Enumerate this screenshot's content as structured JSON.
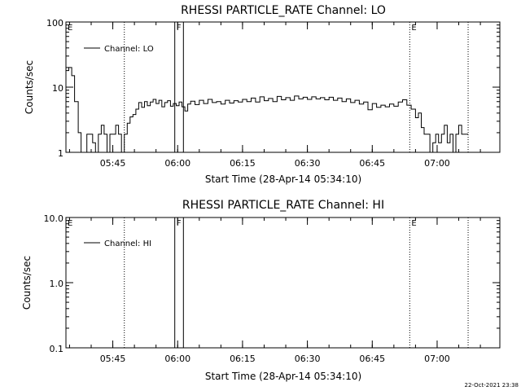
{
  "footer": {
    "timestamp": "22-Oct-2021 23:38"
  },
  "chart_data": [
    {
      "type": "line",
      "title": "RHESSI PARTICLE_RATE Channel: LO",
      "xlabel": "Start Time (28-Apr-14 05:34:10)",
      "ylabel": "Counts/sec",
      "yscale": "log",
      "ylim": [
        1,
        100
      ],
      "yticks": [
        {
          "value": 1,
          "label": "1"
        },
        {
          "value": 10,
          "label": "10"
        },
        {
          "value": 100,
          "label": "100"
        }
      ],
      "xlim": [
        "05:34:10",
        "07:14:30"
      ],
      "xticks": [
        {
          "time": "05:45",
          "label": "05:45"
        },
        {
          "time": "06:00",
          "label": "06:00"
        },
        {
          "time": "06:15",
          "label": "06:15"
        },
        {
          "time": "06:30",
          "label": "06:30"
        },
        {
          "time": "06:45",
          "label": "06:45"
        },
        {
          "time": "07:00",
          "label": "07:00"
        }
      ],
      "legend": {
        "label": "Channel: LO",
        "position": "top-left"
      },
      "markers": [
        {
          "time": "05:34:10",
          "style": "none",
          "label": "E"
        },
        {
          "time": "05:47:40",
          "style": "dotted",
          "label": ""
        },
        {
          "time": "05:59:20",
          "style": "solid",
          "label": "F"
        },
        {
          "time": "06:01:20",
          "style": "solid",
          "label": ""
        },
        {
          "time": "06:53:40",
          "style": "dotted",
          "label": "E"
        },
        {
          "time": "07:07:10",
          "style": "dotted",
          "label": ""
        }
      ],
      "series": [
        {
          "name": "",
          "points": [
            [
              "05:34:10",
              18
            ],
            [
              "05:34:50",
              20
            ],
            [
              "05:35:30",
              15
            ],
            [
              "05:36:10",
              6
            ],
            [
              "05:37:00",
              2
            ],
            [
              "05:37:40",
              1
            ],
            [
              "05:38:20",
              1
            ],
            [
              "05:39:00",
              1.9
            ],
            [
              "05:39:40",
              1.9
            ],
            [
              "05:40:20",
              1.4
            ],
            [
              "05:41:00",
              1
            ],
            [
              "05:41:40",
              1.9
            ],
            [
              "05:42:20",
              2.6
            ],
            [
              "05:43:00",
              1.9
            ],
            [
              "05:43:40",
              1
            ],
            [
              "05:44:20",
              1.9
            ],
            [
              "05:45:00",
              1.9
            ],
            [
              "05:45:40",
              2.6
            ],
            [
              "05:46:20",
              1.9
            ],
            [
              "05:47:00",
              1
            ],
            [
              "05:47:40",
              1.9
            ],
            [
              "05:48:20",
              2.8
            ],
            [
              "05:49:00",
              3.5
            ],
            [
              "05:49:40",
              3.8
            ],
            [
              "05:50:20",
              4.6
            ],
            [
              "05:51:00",
              5.8
            ],
            [
              "05:51:40",
              4.9
            ],
            [
              "05:52:20",
              6.0
            ],
            [
              "05:53:00",
              5.2
            ],
            [
              "05:53:40",
              5.9
            ],
            [
              "05:54:20",
              6.5
            ],
            [
              "05:55:00",
              5.6
            ],
            [
              "05:55:40",
              6.3
            ],
            [
              "05:56:20",
              5.0
            ],
            [
              "05:57:00",
              5.8
            ],
            [
              "05:57:40",
              6.2
            ],
            [
              "05:58:20",
              5.1
            ],
            [
              "05:59:00",
              5.6
            ],
            [
              "05:59:40",
              5.2
            ],
            [
              "06:00:20",
              5.9
            ],
            [
              "06:01:00",
              5.0
            ],
            [
              "06:01:40",
              4.3
            ],
            [
              "06:02:20",
              5.5
            ],
            [
              "06:03:00",
              6.1
            ],
            [
              "06:04:00",
              5.4
            ],
            [
              "06:05:00",
              6.3
            ],
            [
              "06:06:00",
              5.6
            ],
            [
              "06:07:00",
              6.5
            ],
            [
              "06:08:00",
              5.8
            ],
            [
              "06:09:00",
              6.0
            ],
            [
              "06:10:00",
              5.5
            ],
            [
              "06:11:00",
              6.3
            ],
            [
              "06:12:00",
              5.7
            ],
            [
              "06:13:00",
              6.2
            ],
            [
              "06:14:00",
              5.9
            ],
            [
              "06:15:00",
              6.5
            ],
            [
              "06:16:00",
              6.0
            ],
            [
              "06:17:00",
              6.8
            ],
            [
              "06:18:00",
              5.9
            ],
            [
              "06:19:00",
              7.1
            ],
            [
              "06:20:00",
              6.2
            ],
            [
              "06:21:00",
              6.7
            ],
            [
              "06:22:00",
              6.0
            ],
            [
              "06:23:00",
              7.2
            ],
            [
              "06:24:00",
              6.4
            ],
            [
              "06:25:00",
              6.9
            ],
            [
              "06:26:00",
              6.3
            ],
            [
              "06:27:00",
              7.3
            ],
            [
              "06:28:00",
              6.6
            ],
            [
              "06:29:00",
              7.0
            ],
            [
              "06:30:00",
              6.5
            ],
            [
              "06:31:00",
              7.1
            ],
            [
              "06:32:00",
              6.6
            ],
            [
              "06:33:00",
              6.9
            ],
            [
              "06:34:00",
              6.4
            ],
            [
              "06:35:00",
              7.0
            ],
            [
              "06:36:00",
              6.3
            ],
            [
              "06:37:00",
              6.8
            ],
            [
              "06:38:00",
              6.0
            ],
            [
              "06:39:00",
              6.6
            ],
            [
              "06:40:00",
              5.8
            ],
            [
              "06:41:00",
              6.3
            ],
            [
              "06:42:00",
              5.5
            ],
            [
              "06:43:00",
              5.9
            ],
            [
              "06:44:00",
              4.5
            ],
            [
              "06:45:00",
              5.6
            ],
            [
              "06:46:00",
              4.9
            ],
            [
              "06:47:00",
              5.3
            ],
            [
              "06:48:00",
              5.0
            ],
            [
              "06:49:00",
              5.5
            ],
            [
              "06:50:00",
              5.1
            ],
            [
              "06:51:00",
              5.9
            ],
            [
              "06:52:00",
              6.4
            ],
            [
              "06:53:00",
              5.3
            ],
            [
              "06:54:00",
              4.6
            ],
            [
              "06:55:00",
              3.4
            ],
            [
              "06:55:40",
              4.0
            ],
            [
              "06:56:20",
              2.4
            ],
            [
              "06:57:00",
              1.9
            ],
            [
              "06:57:40",
              1.9
            ],
            [
              "06:58:20",
              1.0
            ],
            [
              "06:59:00",
              1.4
            ],
            [
              "06:59:40",
              1.9
            ],
            [
              "07:00:20",
              1.4
            ],
            [
              "07:01:00",
              1.9
            ],
            [
              "07:01:40",
              2.6
            ],
            [
              "07:02:20",
              1.4
            ],
            [
              "07:03:00",
              1.9
            ],
            [
              "07:03:40",
              1.0
            ],
            [
              "07:04:20",
              1.9
            ],
            [
              "07:05:00",
              2.6
            ],
            [
              "07:05:40",
              1.9
            ],
            [
              "07:07:10",
              1.9
            ]
          ]
        }
      ]
    },
    {
      "type": "line",
      "title": "RHESSI PARTICLE_RATE Channel: HI",
      "xlabel": "Start Time (28-Apr-14 05:34:10)",
      "ylabel": "Counts/sec",
      "yscale": "log",
      "ylim": [
        0.1,
        10
      ],
      "yticks": [
        {
          "value": 0.1,
          "label": "0.1"
        },
        {
          "value": 1,
          "label": "1.0"
        },
        {
          "value": 10,
          "label": "10.0"
        }
      ],
      "xlim": [
        "05:34:10",
        "07:14:30"
      ],
      "xticks": [
        {
          "time": "05:45",
          "label": "05:45"
        },
        {
          "time": "06:00",
          "label": "06:00"
        },
        {
          "time": "06:15",
          "label": "06:15"
        },
        {
          "time": "06:30",
          "label": "06:30"
        },
        {
          "time": "06:45",
          "label": "06:45"
        },
        {
          "time": "07:00",
          "label": "07:00"
        }
      ],
      "legend": {
        "label": "Channel: HI",
        "position": "top-left"
      },
      "markers": [
        {
          "time": "05:34:10",
          "style": "none",
          "label": "E"
        },
        {
          "time": "05:47:40",
          "style": "dotted",
          "label": ""
        },
        {
          "time": "05:59:20",
          "style": "solid",
          "label": "F"
        },
        {
          "time": "06:01:20",
          "style": "solid",
          "label": ""
        },
        {
          "time": "06:53:40",
          "style": "dotted",
          "label": "E"
        },
        {
          "time": "07:07:10",
          "style": "dotted",
          "label": ""
        }
      ],
      "series": [
        {
          "name": "",
          "points": []
        }
      ]
    }
  ]
}
